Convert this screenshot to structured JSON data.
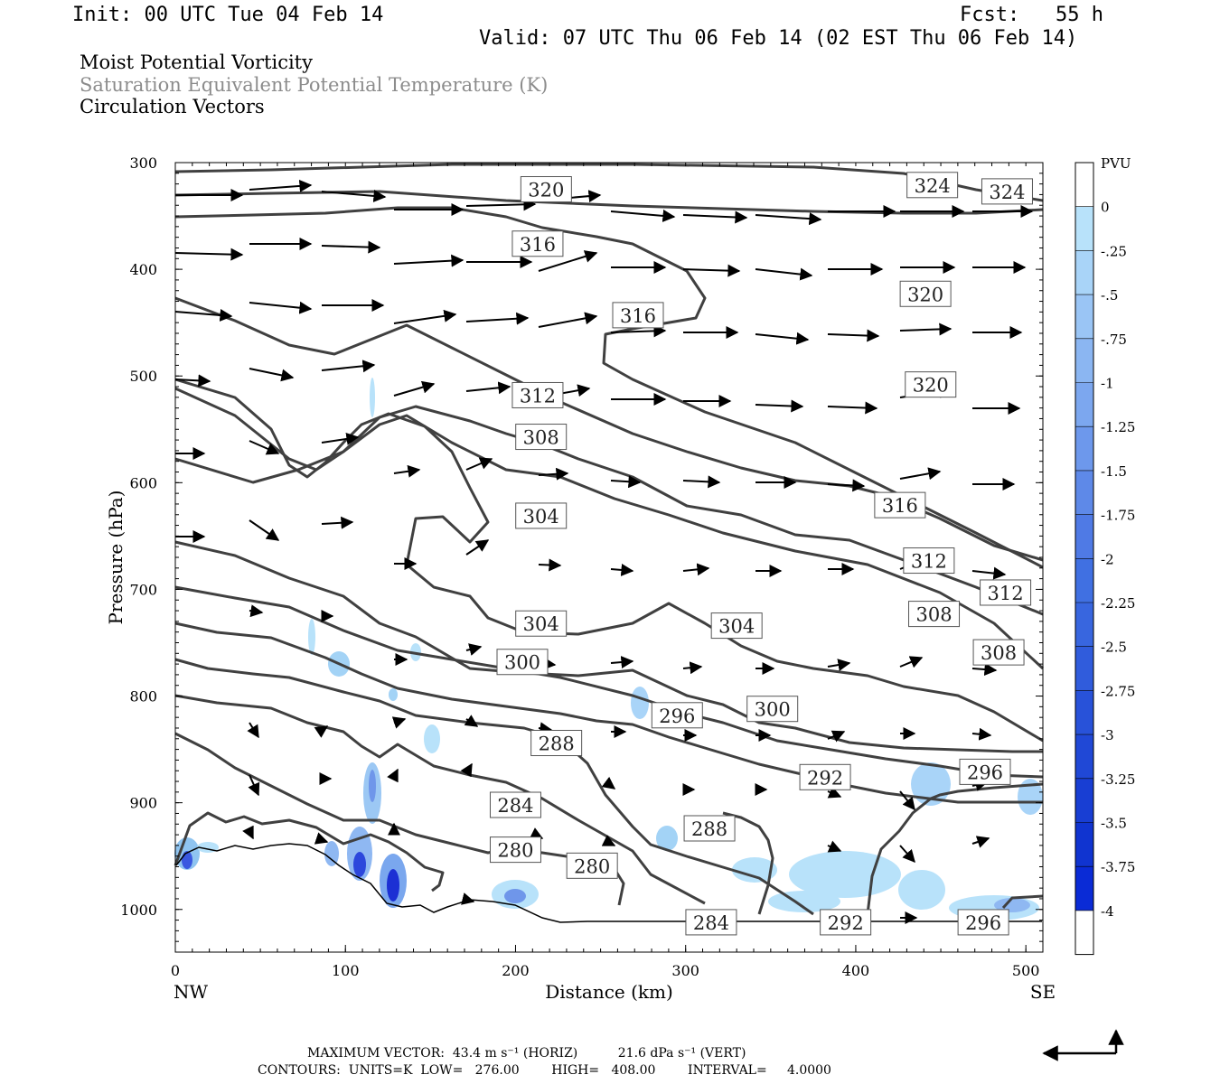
{
  "header": {
    "init": "Init: 00 UTC Tue 04 Feb 14",
    "fcst": "Fcst:   55 h",
    "valid": "Valid: 07 UTC Thu 06 Feb 14 (02 EST Thu 06 Feb 14)"
  },
  "legend_lines": [
    "Moist Potential Vorticity",
    "Saturation Equivalent Potential Temperature (K)",
    "Circulation Vectors"
  ],
  "footer": {
    "max_vector": "MAXIMUM VECTOR:  43.4 m s⁻¹ (HORIZ)          21.6 dPa s⁻¹ (VERT)",
    "contours": "CONTOURS:  UNITS=K  LOW=   276.00        HIGH=   408.00        INTERVAL=     4.0000"
  },
  "colors": {
    "contour": "#404040",
    "shade_light": "#b8e2fa",
    "shade_mid": "#7aa7ee",
    "shade_dark": "#1f35d8"
  },
  "chart_data": {
    "type": "cross-section",
    "xlabel": "Distance (km)",
    "ylabel": "Pressure (hPa)",
    "xlim": [
      0,
      510
    ],
    "ylim": [
      1040,
      300
    ],
    "x_ticks": [
      "0",
      "100",
      "200",
      "300",
      "400",
      "500"
    ],
    "y_ticks": [
      "300",
      "400",
      "500",
      "600",
      "700",
      "800",
      "900",
      "1000"
    ],
    "x_end_labels": [
      "NW",
      "SE"
    ],
    "colorbar": {
      "unit": "PVU",
      "labels": [
        "0",
        "-.25",
        "-.5",
        "-.75",
        "-1",
        "-1.25",
        "-1.5",
        "-1.75",
        "-2",
        "-2.25",
        "-2.5",
        "-2.75",
        "-3",
        "-3.25",
        "-3.5",
        "-3.75",
        "-4"
      ],
      "colors": [
        "#ffffff",
        "#b8e2fa",
        "#a9d4f8",
        "#9ac5f5",
        "#8bb6f2",
        "#7ca7ef",
        "#6d98ec",
        "#5e89e8",
        "#4f7ae5",
        "#4070e2",
        "#3866df",
        "#305cdc",
        "#2852d9",
        "#2048d6",
        "#183ed3",
        "#1034d0",
        "#0a2bd6"
      ]
    },
    "contour_labels": [
      {
        "v": "320",
        "x": 218,
        "p": 325
      },
      {
        "v": "324",
        "x": 445,
        "p": 321
      },
      {
        "v": "324",
        "x": 489,
        "p": 327
      },
      {
        "v": "316",
        "x": 213,
        "p": 376
      },
      {
        "v": "320",
        "x": 441,
        "p": 423
      },
      {
        "v": "316",
        "x": 272,
        "p": 443
      },
      {
        "v": "320",
        "x": 444,
        "p": 508
      },
      {
        "v": "312",
        "x": 213,
        "p": 518
      },
      {
        "v": "308",
        "x": 215,
        "p": 557
      },
      {
        "v": "304",
        "x": 215,
        "p": 631
      },
      {
        "v": "316",
        "x": 426,
        "p": 621
      },
      {
        "v": "312",
        "x": 443,
        "p": 673
      },
      {
        "v": "312",
        "x": 488,
        "p": 703
      },
      {
        "v": "304",
        "x": 215,
        "p": 732
      },
      {
        "v": "304",
        "x": 330,
        "p": 734
      },
      {
        "v": "308",
        "x": 446,
        "p": 723
      },
      {
        "v": "308",
        "x": 484,
        "p": 759
      },
      {
        "v": "300",
        "x": 204,
        "p": 768
      },
      {
        "v": "296",
        "x": 295,
        "p": 818
      },
      {
        "v": "300",
        "x": 351,
        "p": 812
      },
      {
        "v": "288",
        "x": 224,
        "p": 844
      },
      {
        "v": "292",
        "x": 382,
        "p": 876
      },
      {
        "v": "296",
        "x": 476,
        "p": 871
      },
      {
        "v": "284",
        "x": 200,
        "p": 902
      },
      {
        "v": "288",
        "x": 314,
        "p": 924
      },
      {
        "v": "280",
        "x": 200,
        "p": 944
      },
      {
        "v": "280",
        "x": 245,
        "p": 959
      },
      {
        "v": "284",
        "x": 315,
        "p": 1012
      },
      {
        "v": "292",
        "x": 394,
        "p": 1012
      },
      {
        "v": "296",
        "x": 475,
        "p": 1012
      }
    ]
  }
}
